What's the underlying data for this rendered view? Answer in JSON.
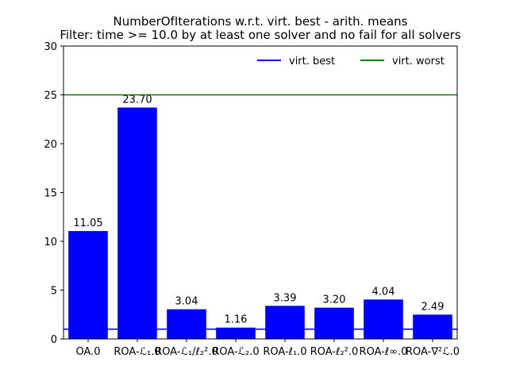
{
  "chart_data": {
    "type": "bar",
    "title": "NumberOfIterations w.r.t. virt. best - arith. means",
    "subtitle": "Filter: time >= 10.0 by at least one solver and no fail for all solvers",
    "categories": [
      "OA.0",
      "ROA-ℒ₁.0",
      "ROA-ℒ₁/ℓ₂².0",
      "ROA-ℒ₂.0",
      "ROA-ℓ₁.0",
      "ROA-ℓ₂².0",
      "ROA-ℓ∞.0",
      "ROA-∇²ℒ.0"
    ],
    "values": [
      11.05,
      23.7,
      3.04,
      1.16,
      3.39,
      3.2,
      4.04,
      2.49
    ],
    "value_labels": [
      "11.05",
      "23.70",
      "3.04",
      "1.16",
      "3.39",
      "3.20",
      "4.04",
      "2.49"
    ],
    "ylim": [
      0,
      30
    ],
    "yticks": [
      0,
      5,
      10,
      15,
      20,
      25,
      30
    ],
    "bar_color": "#0000ff",
    "reference_lines": [
      {
        "name": "virt. best",
        "value": 1.0,
        "color": "#0000ff"
      },
      {
        "name": "virt. worst",
        "value": 25.0,
        "color": "#008000"
      }
    ],
    "legend_position": "top-right",
    "grid": false
  }
}
